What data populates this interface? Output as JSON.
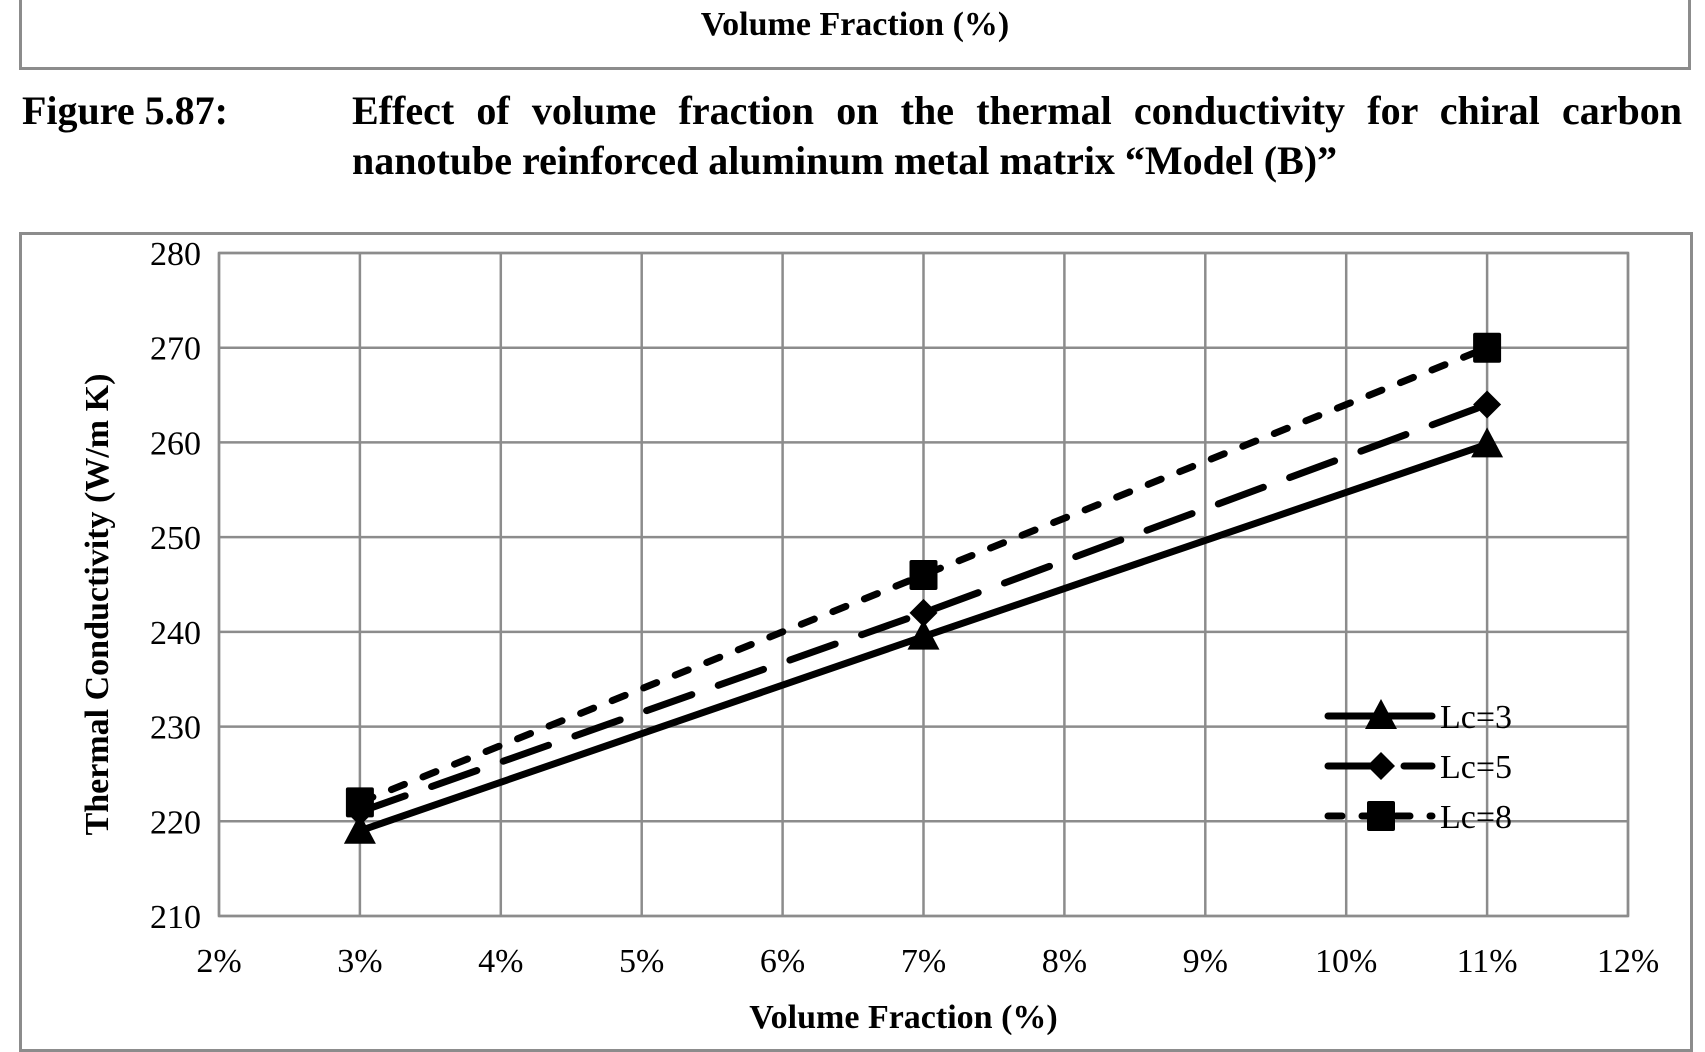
{
  "previous_figure": {
    "xlabel": "Volume Fraction (%)"
  },
  "caption": {
    "number": "Figure 5.87:",
    "text": "Effect of volume fraction on the thermal conductivity for chiral carbon nanotube reinforced aluminum metal matrix “Model (B)”"
  },
  "chart_data": {
    "type": "line",
    "title": "",
    "xlabel": "Volume Fraction (%)",
    "ylabel": "Thermal Conductivity (W/m K)",
    "xlim": [
      2,
      12
    ],
    "ylim": [
      210,
      280
    ],
    "x_ticks": [
      2,
      3,
      4,
      5,
      6,
      7,
      8,
      9,
      10,
      11,
      12
    ],
    "x_tick_labels": [
      "2%",
      "3%",
      "4%",
      "5%",
      "6%",
      "7%",
      "8%",
      "9%",
      "10%",
      "11%",
      "12%"
    ],
    "y_ticks": [
      210,
      220,
      230,
      240,
      250,
      260,
      270,
      280
    ],
    "y_tick_labels": [
      "210",
      "220",
      "230",
      "240",
      "250",
      "260",
      "270",
      "280"
    ],
    "grid": true,
    "legend_position": "lower-right",
    "x": [
      3,
      7,
      11
    ],
    "series": [
      {
        "name": "Lc=3",
        "values": [
          219,
          239.5,
          259.8
        ],
        "marker": "triangle",
        "line_style": "solid",
        "color": "#000000"
      },
      {
        "name": "Lc=5",
        "values": [
          221,
          242,
          264
        ],
        "marker": "diamond",
        "line_style": "long-dash",
        "color": "#000000"
      },
      {
        "name": "Lc=8",
        "values": [
          222,
          246,
          270
        ],
        "marker": "square",
        "line_style": "short-dash",
        "color": "#000000"
      }
    ],
    "grid_color": "#8c8c8c"
  }
}
